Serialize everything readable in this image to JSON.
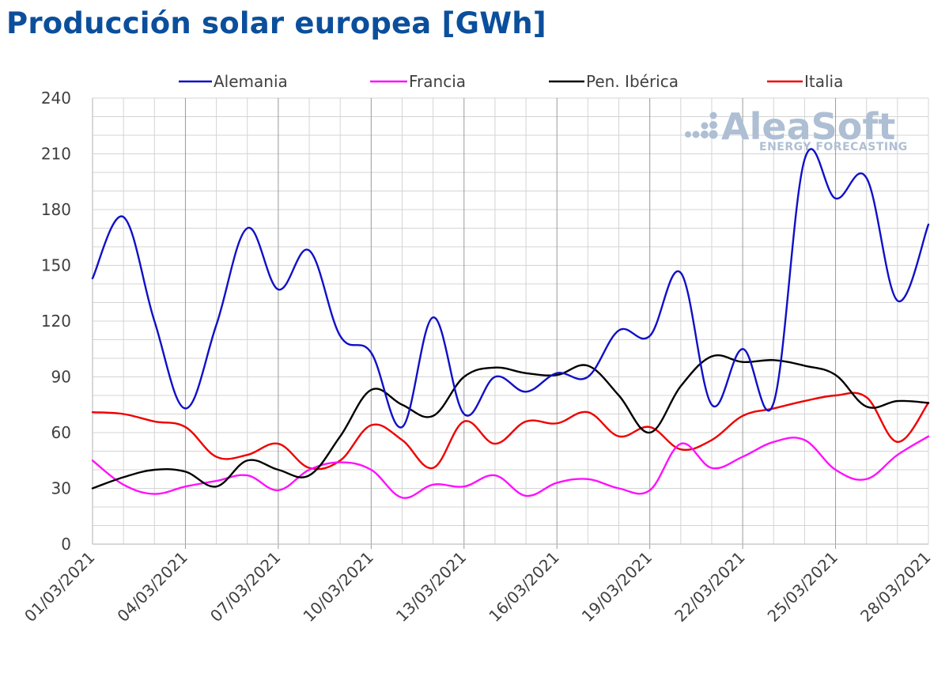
{
  "title": "Producción solar europea [GWh]",
  "watermark": {
    "brand": "AleaSoft",
    "tagline": "ENERGY FORECASTING",
    "logo_icon": "dots-logo-icon"
  },
  "chart_data": {
    "type": "line",
    "title": "Producción solar europea [GWh]",
    "xlabel": "",
    "ylabel": "",
    "ylim": [
      0,
      240
    ],
    "yticks": [
      0,
      30,
      60,
      90,
      120,
      150,
      180,
      210,
      240
    ],
    "grid": true,
    "legend_position": "top",
    "x": [
      "01/03/2021",
      "02/03/2021",
      "03/03/2021",
      "04/03/2021",
      "05/03/2021",
      "06/03/2021",
      "07/03/2021",
      "08/03/2021",
      "09/03/2021",
      "10/03/2021",
      "11/03/2021",
      "12/03/2021",
      "13/03/2021",
      "14/03/2021",
      "15/03/2021",
      "16/03/2021",
      "17/03/2021",
      "18/03/2021",
      "19/03/2021",
      "20/03/2021",
      "21/03/2021",
      "22/03/2021",
      "23/03/2021",
      "24/03/2021",
      "25/03/2021",
      "26/03/2021",
      "27/03/2021",
      "28/03/2021"
    ],
    "xtick_labels": [
      "01/03/2021",
      "04/03/2021",
      "07/03/2021",
      "10/03/2021",
      "13/03/2021",
      "16/03/2021",
      "19/03/2021",
      "22/03/2021",
      "25/03/2021",
      "28/03/2021"
    ],
    "series": [
      {
        "name": "Alemania",
        "color": "#1010c8",
        "values": [
          143,
          176,
          120,
          73,
          118,
          170,
          137,
          158,
          112,
          103,
          63,
          122,
          70,
          90,
          82,
          92,
          90,
          115,
          112,
          146,
          75,
          105,
          76,
          207,
          186,
          197,
          131,
          172
        ]
      },
      {
        "name": "Francia",
        "color": "#ff10ff",
        "values": [
          45,
          32,
          27,
          31,
          34,
          37,
          29,
          40,
          44,
          40,
          25,
          32,
          31,
          37,
          26,
          33,
          35,
          30,
          29,
          54,
          41,
          47,
          55,
          56,
          40,
          35,
          48,
          58
        ]
      },
      {
        "name": "Pen. Ibérica",
        "color": "#000000",
        "values": [
          30,
          36,
          40,
          39,
          31,
          45,
          40,
          37,
          58,
          83,
          75,
          69,
          90,
          95,
          92,
          91,
          96,
          80,
          60,
          85,
          101,
          98,
          99,
          96,
          91,
          74,
          77,
          76
        ]
      },
      {
        "name": "Italia",
        "color": "#ee0000",
        "values": [
          71,
          70,
          66,
          63,
          47,
          48,
          54,
          41,
          45,
          64,
          56,
          41,
          66,
          54,
          66,
          65,
          71,
          58,
          63,
          51,
          56,
          69,
          73,
          77,
          80,
          79,
          55,
          76
        ]
      }
    ]
  }
}
